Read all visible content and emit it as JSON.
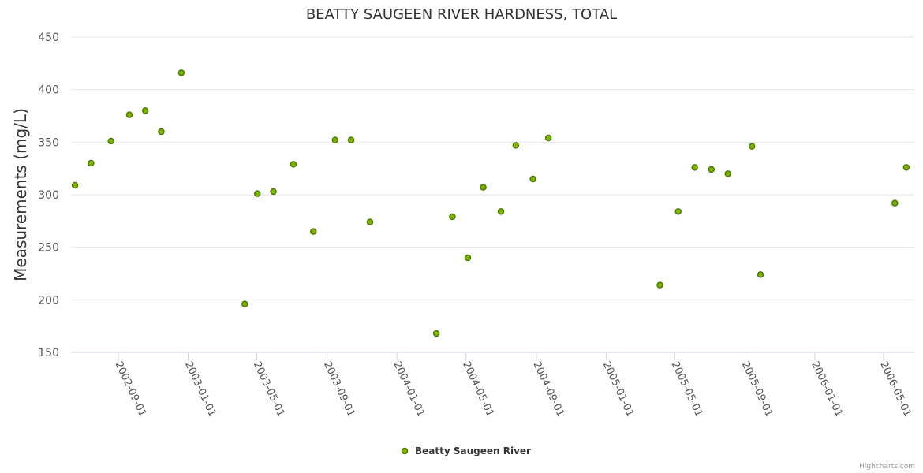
{
  "chart_data": {
    "type": "scatter",
    "title": "BEATTY SAUGEEN RIVER HARDNESS, TOTAL",
    "xlabel": "",
    "ylabel": "Measurements (mg/L)",
    "ylim": [
      150,
      450
    ],
    "yticks": [
      150,
      200,
      250,
      300,
      350,
      400,
      450
    ],
    "xlim": [
      "2002-06-10",
      "2006-06-24"
    ],
    "xticks": [
      "2002-09-01",
      "2003-01-01",
      "2003-05-01",
      "2003-09-01",
      "2004-01-01",
      "2004-05-01",
      "2004-09-01",
      "2005-01-01",
      "2005-05-01",
      "2005-09-01",
      "2006-01-01",
      "2006-05-01"
    ],
    "grid": true,
    "series": [
      {
        "name": "Beatty Saugeen River",
        "color": "#7cb500",
        "points": [
          {
            "x": "2002-06-17",
            "y": 309
          },
          {
            "x": "2002-07-15",
            "y": 330
          },
          {
            "x": "2002-08-19",
            "y": 351
          },
          {
            "x": "2002-09-20",
            "y": 376
          },
          {
            "x": "2002-10-18",
            "y": 380
          },
          {
            "x": "2002-11-15",
            "y": 360
          },
          {
            "x": "2002-12-20",
            "y": 416
          },
          {
            "x": "2003-04-10",
            "y": 196
          },
          {
            "x": "2003-05-02",
            "y": 301
          },
          {
            "x": "2003-05-30",
            "y": 303
          },
          {
            "x": "2003-07-04",
            "y": 329
          },
          {
            "x": "2003-08-08",
            "y": 265
          },
          {
            "x": "2003-09-15",
            "y": 352
          },
          {
            "x": "2003-10-13",
            "y": 352
          },
          {
            "x": "2003-11-15",
            "y": 274
          },
          {
            "x": "2004-03-10",
            "y": 168
          },
          {
            "x": "2004-04-07",
            "y": 279
          },
          {
            "x": "2004-05-04",
            "y": 240
          },
          {
            "x": "2004-05-31",
            "y": 307
          },
          {
            "x": "2004-07-01",
            "y": 284
          },
          {
            "x": "2004-07-27",
            "y": 347
          },
          {
            "x": "2004-08-26",
            "y": 315
          },
          {
            "x": "2004-09-22",
            "y": 354
          },
          {
            "x": "2005-04-05",
            "y": 214
          },
          {
            "x": "2005-05-07",
            "y": 284
          },
          {
            "x": "2005-06-05",
            "y": 326
          },
          {
            "x": "2005-07-04",
            "y": 324
          },
          {
            "x": "2005-08-02",
            "y": 320
          },
          {
            "x": "2005-09-13",
            "y": 346
          },
          {
            "x": "2005-09-28",
            "y": 224
          },
          {
            "x": "2006-05-21",
            "y": 292
          },
          {
            "x": "2006-06-10",
            "y": 326
          }
        ]
      }
    ],
    "legend": {
      "position": "bottom-center",
      "label": "Beatty Saugeen River"
    },
    "credit": "Highcharts.com"
  }
}
